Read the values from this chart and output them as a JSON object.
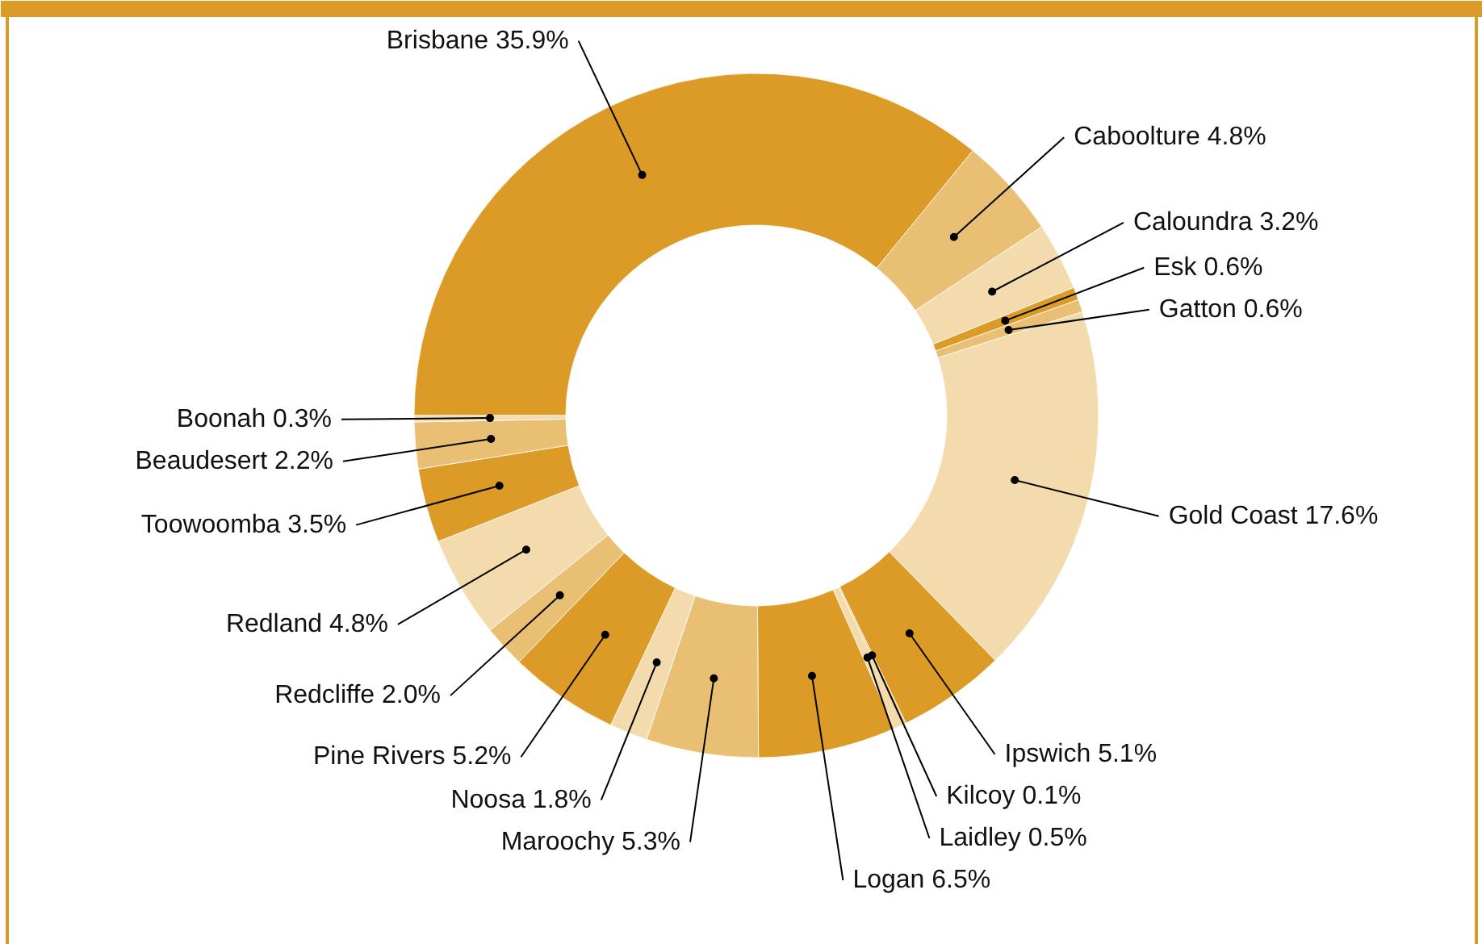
{
  "chart_data": {
    "type": "donut",
    "data_labels": true,
    "categories": [
      "Brisbane",
      "Caboolture",
      "Caloundra",
      "Esk",
      "Gatton",
      "Gold Coast",
      "Ipswich",
      "Kilcoy",
      "Laidley",
      "Logan",
      "Maroochy",
      "Noosa",
      "Pine Rivers",
      "Redcliffe",
      "Redland",
      "Toowoomba",
      "Beaudesert",
      "Boonah"
    ],
    "values": [
      35.9,
      4.8,
      3.2,
      0.6,
      0.6,
      17.6,
      5.1,
      0.1,
      0.5,
      6.5,
      5.3,
      1.8,
      5.2,
      2.0,
      4.8,
      3.5,
      2.2,
      0.3
    ],
    "value_labels": [
      "35.9%",
      "4.8%",
      "3.2%",
      "0.6%",
      "0.6%",
      "17.6%",
      "5.1%",
      "0.1%",
      "0.5%",
      "6.5%",
      "5.3%",
      "1.8%",
      "5.2%",
      "2.0%",
      "4.8%",
      "3.5%",
      "2.2%",
      "0.3%"
    ],
    "colors": [
      "#dc9b26",
      "#e9c073",
      "#f3dbae",
      "#dc9b26",
      "#e9c073",
      "#f3dbae",
      "#dc9b26",
      "#e9c073",
      "#f3dbae",
      "#dc9b26",
      "#e9c073",
      "#f3dbae",
      "#dc9b26",
      "#e9c073",
      "#f3dbae",
      "#dc9b26",
      "#e9c073",
      "#f3dbae"
    ]
  }
}
